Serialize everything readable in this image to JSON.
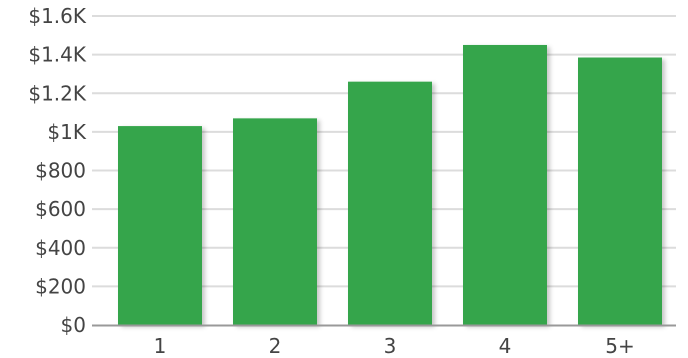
{
  "chart_data": {
    "type": "bar",
    "categories": [
      "1",
      "2",
      "3",
      "4",
      "5+"
    ],
    "values": [
      1030,
      1070,
      1260,
      1450,
      1385
    ],
    "y_tick_values": [
      0,
      200,
      400,
      600,
      800,
      1000,
      1200,
      1400,
      1600
    ],
    "y_tick_labels": [
      "$0",
      "$200",
      "$400",
      "$600",
      "$800",
      "$1K",
      "$1.2K",
      "$1.4K",
      "$1.6K"
    ],
    "ylim": [
      0,
      1600
    ],
    "grid": true,
    "legend": "none",
    "title": "",
    "xlabel": "",
    "ylabel": "",
    "colors": {
      "bar": "#34a54b",
      "grid": "#dcdcdc",
      "axis": "#999999",
      "text": "#444444"
    }
  }
}
